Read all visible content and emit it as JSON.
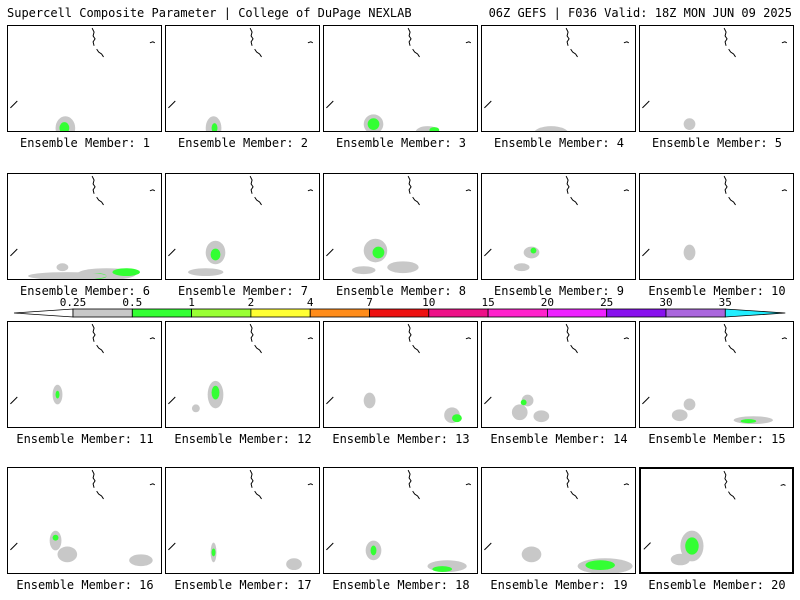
{
  "header": {
    "left": "Supercell Composite Parameter | College of DuPage NEXLAB",
    "right": "06Z GEFS | F036 Valid: 18Z MON JUN 09 2025"
  },
  "colorbar": {
    "ticks": [
      "0.25",
      "0.5",
      "1",
      "2",
      "4",
      "7",
      "10",
      "15",
      "20",
      "25",
      "30",
      "35"
    ],
    "colors": [
      "#ffffff",
      "#c8c8c8",
      "#33ff33",
      "#99ff33",
      "#ffff33",
      "#ff8c1a",
      "#ee1111",
      "#ee1188",
      "#ff22cc",
      "#ee22ff",
      "#8811ee",
      "#aa66dd",
      "#22eeff"
    ]
  },
  "panel_label_prefix": "Ensemble Member:",
  "members": [
    {
      "number": "1",
      "label": "Ensemble Member: 1"
    },
    {
      "number": "2",
      "label": "Ensemble Member: 2"
    },
    {
      "number": "3",
      "label": "Ensemble Member: 3"
    },
    {
      "number": "4",
      "label": "Ensemble Member: 4"
    },
    {
      "number": "5",
      "label": "Ensemble Member: 5"
    },
    {
      "number": "6",
      "label": "Ensemble Member: 6"
    },
    {
      "number": "7",
      "label": "Ensemble Member: 7"
    },
    {
      "number": "8",
      "label": "Ensemble Member: 8"
    },
    {
      "number": "9",
      "label": "Ensemble Member: 9"
    },
    {
      "number": "10",
      "label": "Ensemble Member: 10"
    },
    {
      "number": "11",
      "label": "Ensemble Member: 11"
    },
    {
      "number": "12",
      "label": "Ensemble Member: 12"
    },
    {
      "number": "13",
      "label": "Ensemble Member: 13"
    },
    {
      "number": "14",
      "label": "Ensemble Member: 14"
    },
    {
      "number": "15",
      "label": "Ensemble Member: 15"
    },
    {
      "number": "16",
      "label": "Ensemble Member: 16"
    },
    {
      "number": "17",
      "label": "Ensemble Member: 17"
    },
    {
      "number": "18",
      "label": "Ensemble Member: 18"
    },
    {
      "number": "19",
      "label": "Ensemble Member: 19"
    },
    {
      "number": "20",
      "label": "Ensemble Member: 20"
    }
  ],
  "selected_member": "20"
}
